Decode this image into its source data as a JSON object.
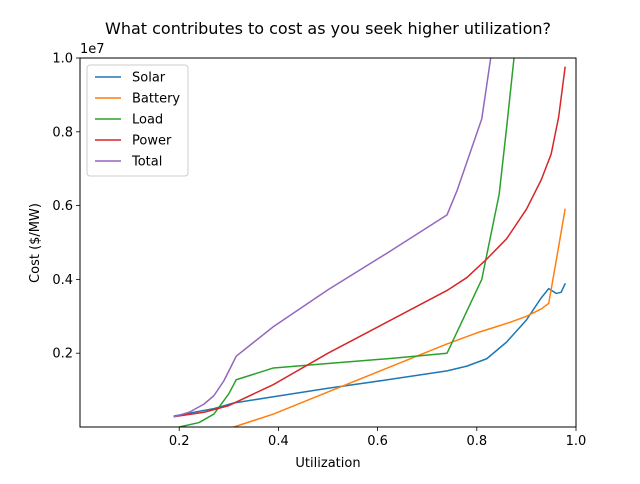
{
  "chart_data": {
    "type": "line",
    "title": "What contributes to cost as you seek higher utilization?",
    "xlabel": "Utilization",
    "ylabel": "Cost ($/MW)",
    "y_offset_label": "1e7",
    "xlim": [
      0.0,
      1.0
    ],
    "ylim": [
      0.0,
      10.0
    ],
    "xticks": [
      0.2,
      0.4,
      0.6,
      0.8,
      1.0
    ],
    "xtick_labels": [
      "0.2",
      "0.4",
      "0.6",
      "0.8",
      "1.0"
    ],
    "yticks": [
      2.0,
      4.0,
      6.0,
      8.0,
      10.0
    ],
    "ytick_labels": [
      "0.2",
      "0.4",
      "0.6",
      "0.8",
      "1.0"
    ],
    "grid": false,
    "legend_position": "top-left",
    "series": [
      {
        "name": "Solar",
        "color": "#1f77b4",
        "x": [
          0.19,
          0.23,
          0.27,
          0.31,
          0.39,
          0.5,
          0.62,
          0.74,
          0.78,
          0.82,
          0.86,
          0.9,
          0.93,
          0.945,
          0.96,
          0.97,
          0.978
        ],
        "y": [
          0.3,
          0.4,
          0.5,
          0.65,
          0.82,
          1.05,
          1.28,
          1.52,
          1.65,
          1.85,
          2.3,
          2.9,
          3.5,
          3.75,
          3.62,
          3.65,
          3.88
        ]
      },
      {
        "name": "Battery",
        "color": "#ff7f0e",
        "x": [
          0.31,
          0.39,
          0.5,
          0.62,
          0.74,
          0.8,
          0.84,
          0.87,
          0.9,
          0.93,
          0.945,
          0.96,
          0.978
        ],
        "y": [
          0.0,
          0.35,
          0.95,
          1.6,
          2.25,
          2.55,
          2.72,
          2.85,
          3.0,
          3.2,
          3.35,
          4.5,
          5.9
        ]
      },
      {
        "name": "Load",
        "color": "#2ca02c",
        "x": [
          0.2,
          0.24,
          0.27,
          0.3,
          0.315,
          0.39,
          0.5,
          0.62,
          0.74,
          0.81,
          0.845,
          0.86,
          0.875
        ],
        "y": [
          0.0,
          0.12,
          0.35,
          0.9,
          1.28,
          1.6,
          1.72,
          1.85,
          2.0,
          4.0,
          6.3,
          8.1,
          10.0
        ]
      },
      {
        "name": "Power",
        "color": "#d62728",
        "x": [
          0.19,
          0.25,
          0.3,
          0.39,
          0.5,
          0.62,
          0.74,
          0.78,
          0.82,
          0.86,
          0.9,
          0.93,
          0.95,
          0.965,
          0.978
        ],
        "y": [
          0.28,
          0.4,
          0.58,
          1.15,
          2.0,
          2.85,
          3.7,
          4.05,
          4.55,
          5.1,
          5.9,
          6.7,
          7.4,
          8.4,
          9.75
        ]
      },
      {
        "name": "Total",
        "color": "#9467bd",
        "x": [
          0.19,
          0.22,
          0.25,
          0.27,
          0.29,
          0.305,
          0.315,
          0.39,
          0.5,
          0.62,
          0.74,
          0.76,
          0.81,
          0.828
        ],
        "y": [
          0.28,
          0.4,
          0.62,
          0.85,
          1.25,
          1.65,
          1.92,
          2.72,
          3.72,
          4.72,
          5.75,
          6.4,
          8.35,
          10.0
        ]
      }
    ]
  }
}
